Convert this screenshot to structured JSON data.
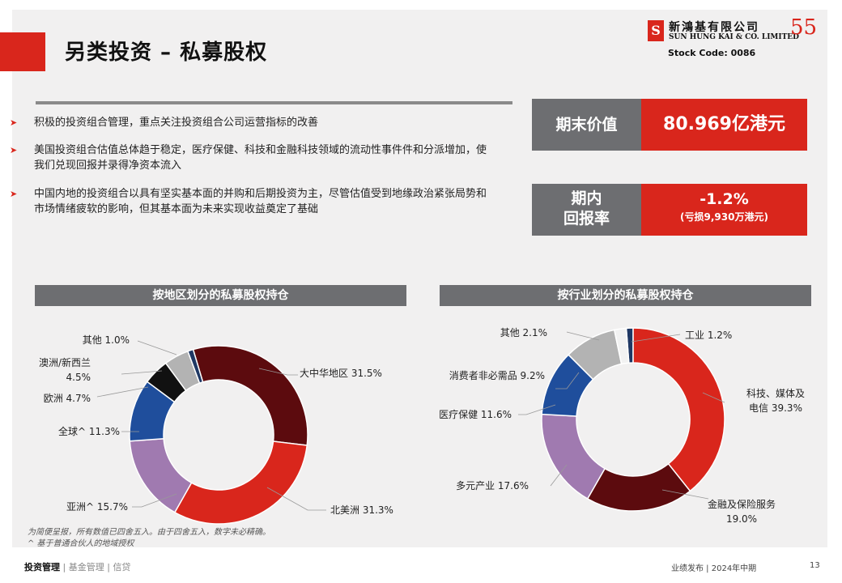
{
  "header": {
    "title": "另类投资 – 私募股权",
    "logo_cn": "新鴻基有限公司",
    "logo_en": "SUN HUNG KAI & CO. LIMITED",
    "logo_anniv": "55",
    "stock_code": "Stock Code: 0086",
    "accent_color": "#d9261c"
  },
  "bullets": [
    "积极的投资组合管理，重点关注投资组合公司运营指标的改善",
    "美国投资组合估值总体趋于稳定，医疗保健、科技和金融科技领域的流动性事件件和分派增加，使我们兑现回报并录得净资本流入",
    "中国内地的投资组合以具有坚实基本面的并购和后期投资为主，尽管估值受到地缘政治紧张局势和市场情绪疲软的影响，但其基本面为未来实现收益奠定了基础"
  ],
  "kpis": {
    "period_end_label": "期末价值",
    "period_end_value": "80.969亿港元",
    "return_label_1": "期内",
    "return_label_2": "回报率",
    "return_value": "-1.2%",
    "return_sub": "(亏损9,930万港元)"
  },
  "chart_data": [
    {
      "type": "pie",
      "title": "按地区划分的私募股权持仓",
      "categories": [
        "大中华地区",
        "北美洲",
        "亚洲^",
        "全球^",
        "欧洲",
        "澳洲/新西兰",
        "其他"
      ],
      "values": [
        31.5,
        31.3,
        15.7,
        11.3,
        4.7,
        4.5,
        1.0
      ],
      "labels": [
        "大中华地区 31.5%",
        "北美洲 31.3%",
        "亚洲^ 15.7%",
        "全球^ 11.3%",
        "欧洲 4.7%",
        "澳洲/新西兰",
        "4.5%",
        "其他 1.0%"
      ],
      "colors": [
        "#5c0b0e",
        "#d9261c",
        "#a07ab0",
        "#1f4e9c",
        "#111111",
        "#b3b3b3",
        "#1f3864"
      ]
    },
    {
      "type": "pie",
      "title": "按行业划分的私募股权持仓",
      "categories": [
        "工业",
        "科技、媒体及电信",
        "金融及保险服务",
        "多元产业",
        "医疗保健",
        "消费者非必需品",
        "其他"
      ],
      "values": [
        1.2,
        39.3,
        19.0,
        17.6,
        11.6,
        9.2,
        2.1
      ],
      "labels": [
        "工业 1.2%",
        "科技、媒体及",
        "电信 39.3%",
        "金融及保险服务",
        "19.0%",
        "多元产业 17.6%",
        "医疗保健 11.6%",
        "消费者非必需品 9.2%",
        "其他 2.1%"
      ],
      "colors": [
        "#1f3864",
        "#d9261c",
        "#5c0b0e",
        "#a07ab0",
        "#1f4e9c",
        "#b3b3b3",
        "#f2f2f2"
      ]
    }
  ],
  "notes": {
    "line1": "为简便呈报，所有数值已四舍五入。由于四舍五入，数字未必精确。",
    "line2": "^ 基于普通合伙人的地域授权"
  },
  "footer": {
    "nav_active": "投资管理",
    "nav_2": "基金管理",
    "nav_3": "信贷",
    "sep": "|",
    "right_text": "业绩发布 | 2024年中期",
    "page": "13"
  }
}
